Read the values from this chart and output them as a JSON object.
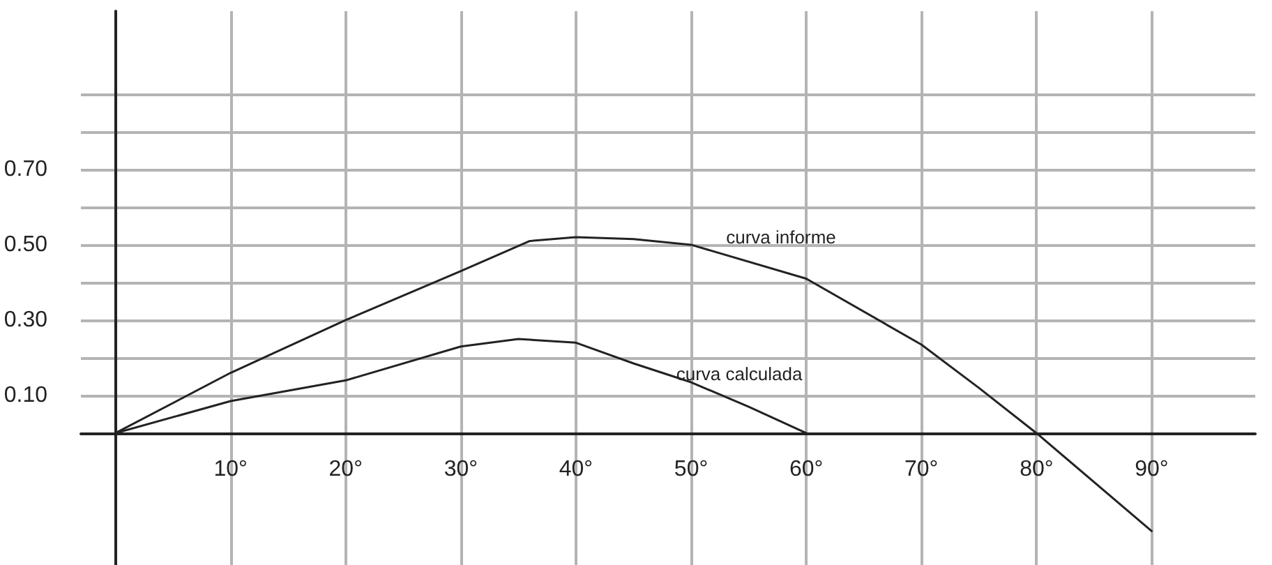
{
  "chart_data": {
    "type": "line",
    "x": [
      0,
      10,
      20,
      30,
      36,
      40,
      45,
      50,
      60,
      70,
      75,
      80,
      90
    ],
    "series": [
      {
        "color": "#222222",
        "values": [
          0,
          0.16,
          0.3,
          0.43,
          0.51,
          0.52,
          0.515,
          0.5,
          0.41,
          0.235,
          0.12,
          0,
          -0.26
        ]
      },
      {
        "color": "#222222",
        "x": [
          0,
          10,
          20,
          30,
          35,
          40,
          45,
          50,
          55,
          60
        ],
        "values": [
          0,
          0.085,
          0.14,
          0.23,
          0.25,
          0.24,
          0.185,
          0.135,
          0.07,
          0
        ]
      }
    ],
    "xlim": [
      -3,
      99
    ],
    "xticks": [
      {
        "value": 10,
        "label": "10°"
      },
      {
        "value": 20,
        "label": "20°"
      },
      {
        "value": 30,
        "label": "30°"
      },
      {
        "value": 40,
        "label": "40°"
      },
      {
        "value": 50,
        "label": "50°"
      },
      {
        "value": 60,
        "label": "60°"
      },
      {
        "value": 70,
        "label": "70°"
      },
      {
        "value": 80,
        "label": "80°"
      },
      {
        "value": 90,
        "label": "90°"
      }
    ],
    "ylim": [
      -0.35,
      1.12
    ],
    "yticks": [
      {
        "value": 0.1,
        "label": "0.10"
      },
      {
        "value": 0.2,
        "label": null
      },
      {
        "value": 0.3,
        "label": "0.30"
      },
      {
        "value": 0.4,
        "label": null
      },
      {
        "value": 0.5,
        "label": "0.50"
      },
      {
        "value": 0.6,
        "label": null
      },
      {
        "value": 0.7,
        "label": "0.70"
      },
      {
        "value": 0.8,
        "label": null
      },
      {
        "value": 0.9,
        "label": null
      }
    ],
    "annotations": [
      "curva informe",
      "curva calculada"
    ],
    "grid": true,
    "marker": "none",
    "line_style": "solid"
  }
}
